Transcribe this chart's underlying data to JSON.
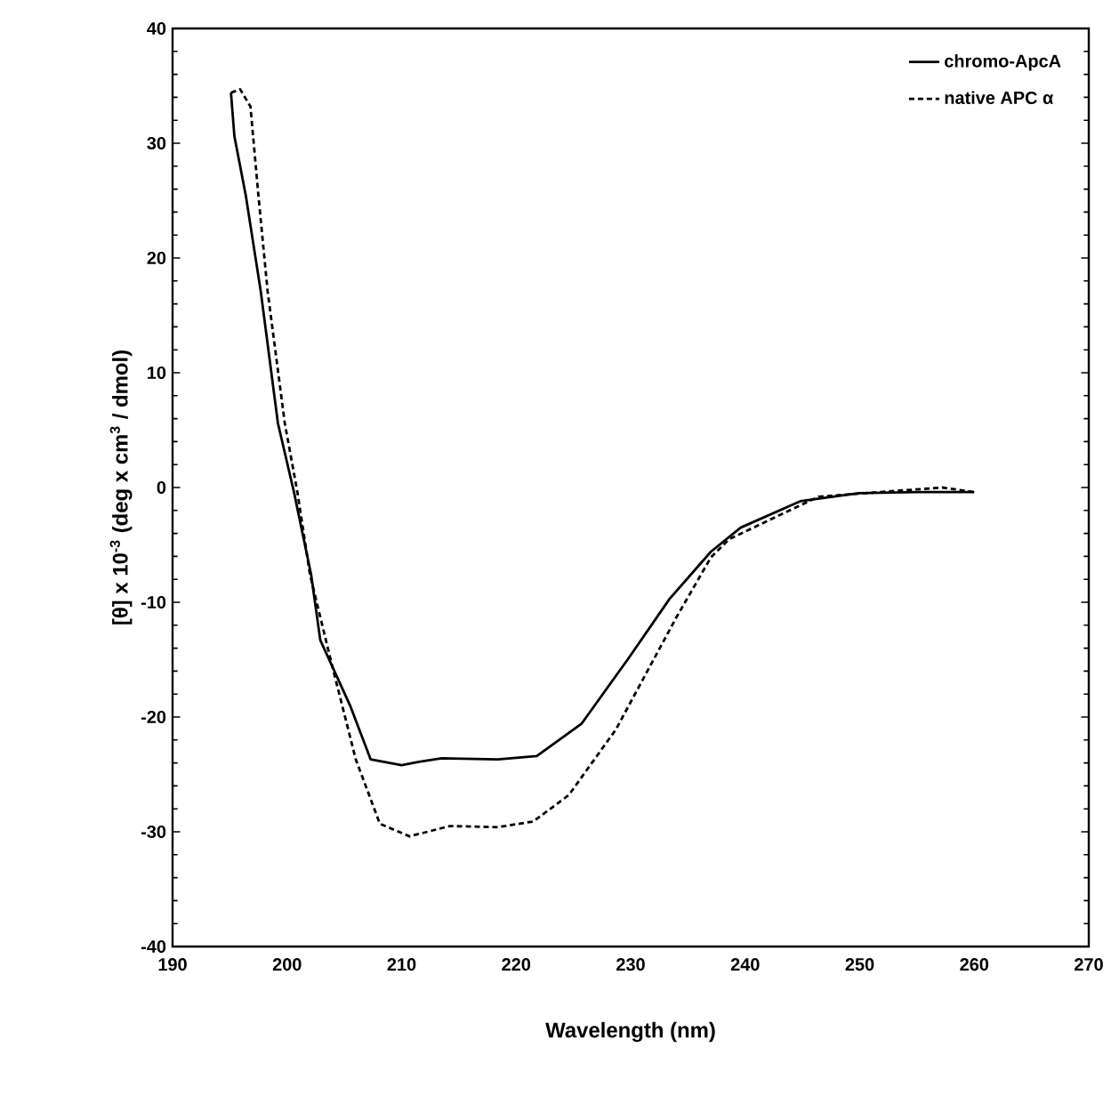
{
  "chart_data": {
    "type": "line",
    "xlabel": "Wavelength (nm)",
    "ylabel": "[θ] x 10$^{-3}$ (deg x cm$^{3}$ / dmol)",
    "xlim": [
      190,
      270
    ],
    "xticks": [
      190,
      200,
      210,
      220,
      230,
      240,
      250,
      260,
      270
    ],
    "ylim": [
      -40,
      40
    ],
    "yticks": [
      -40,
      -30,
      -20,
      -10,
      0,
      10,
      20,
      30,
      40
    ],
    "legend": "top right",
    "marker": "none",
    "grid": false,
    "series": [
      {
        "name": "chromo-ApcA",
        "color": "#000000",
        "line_style": "solid",
        "x": [
          195.1,
          195.4,
          196.4,
          197.7,
          199.2,
          200.6,
          202.1,
          202.9,
          205.5,
          207.3,
          210.0,
          211.5,
          213.5,
          218.4,
          221.8,
          225.7,
          229.8,
          233.4,
          237.0,
          239.6,
          244.8,
          249.9,
          255.1,
          260.0
        ],
        "values": [
          34.4,
          30.6,
          25.4,
          17.1,
          5.6,
          -0.4,
          -7.6,
          -13.3,
          -19.0,
          -23.7,
          -24.2,
          -23.9,
          -23.6,
          -23.7,
          -23.4,
          -20.6,
          -14.9,
          -9.7,
          -5.6,
          -3.5,
          -1.2,
          -0.5,
          -0.4,
          -0.4
        ]
      },
      {
        "name": "native APC α",
        "color": "#000000",
        "line_style": "dashed",
        "x": [
          195.1,
          195.9,
          196.8,
          197.5,
          198.3,
          199.8,
          200.9,
          202.0,
          203.9,
          206.0,
          208.1,
          210.7,
          214.2,
          218.4,
          221.5,
          224.6,
          228.7,
          234.0,
          237.0,
          238.6,
          246.4,
          257.2,
          260.0
        ],
        "values": [
          34.4,
          34.7,
          33.2,
          25.4,
          17.1,
          5.6,
          -0.4,
          -7.6,
          -15.4,
          -23.7,
          -29.3,
          -30.4,
          -29.5,
          -29.6,
          -29.1,
          -26.8,
          -21.1,
          -11.3,
          -6.1,
          -4.5,
          -0.8,
          0.0,
          -0.4
        ]
      }
    ]
  }
}
